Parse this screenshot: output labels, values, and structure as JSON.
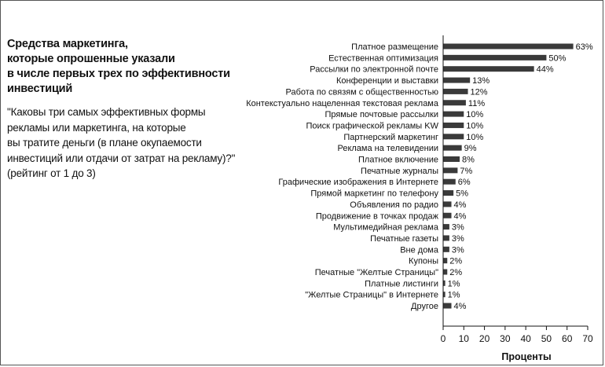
{
  "panel": {
    "title": "Средства маркетинга,\nкоторые опрошенные указали\nв числе первых трех по эффективности\nинвестиций",
    "question": "\"Каковы три самых эффективных формы\nрекламы или маркетинга, на которые\nвы тратите деньги (в плане окупаемости\nинвестиций или отдачи от затрат на рекламу)?\"",
    "rating_note": "(рейтинг от 1 до 3)"
  },
  "chart_data": {
    "type": "bar",
    "orientation": "horizontal",
    "categories": [
      "Платное размещение",
      "Естественная оптимизация",
      "Рассылки по электронной почте",
      "Конференции и выставки",
      "Работа по связям с общественностью",
      "Контекстуально нацеленная текстовая реклама",
      "Прямые почтовые рассылки",
      "Поиск графической рекламы KW",
      "Партнерский маркетинг",
      "Реклама на телевидении",
      "Платное включение",
      "Печатные журналы",
      "Графические изображения в Интернете",
      "Прямой маркетинг по телефону",
      "Объявления по радио",
      "Продвижение в точках продаж",
      "Мультимедийная реклама",
      "Печатные газеты",
      "Вне дома",
      "Купоны",
      "Печатные \"Желтые Страницы\"",
      "Платные листинги",
      "\"Желтые Страницы\" в Интернете",
      "Другое"
    ],
    "values": [
      63,
      50,
      44,
      13,
      12,
      11,
      10,
      10,
      10,
      9,
      8,
      7,
      6,
      5,
      4,
      4,
      3,
      3,
      3,
      2,
      2,
      1,
      1,
      4
    ],
    "value_labels": [
      "63%",
      "50%",
      "44%",
      "13%",
      "12%",
      "11%",
      "10%",
      "10%",
      "10%",
      "9%",
      "8%",
      "7%",
      "6%",
      "5%",
      "4%",
      "4%",
      "3%",
      "3%",
      "3%",
      "2%",
      "2%",
      "1%",
      "1%",
      "4%"
    ],
    "xlabel": "Проценты",
    "ylabel": "",
    "xlim": [
      0,
      70
    ],
    "xticks": [
      "0",
      "10",
      "20",
      "30",
      "40",
      "50",
      "60",
      "70"
    ],
    "grid": false,
    "bar_color": "#3a3a3a"
  }
}
